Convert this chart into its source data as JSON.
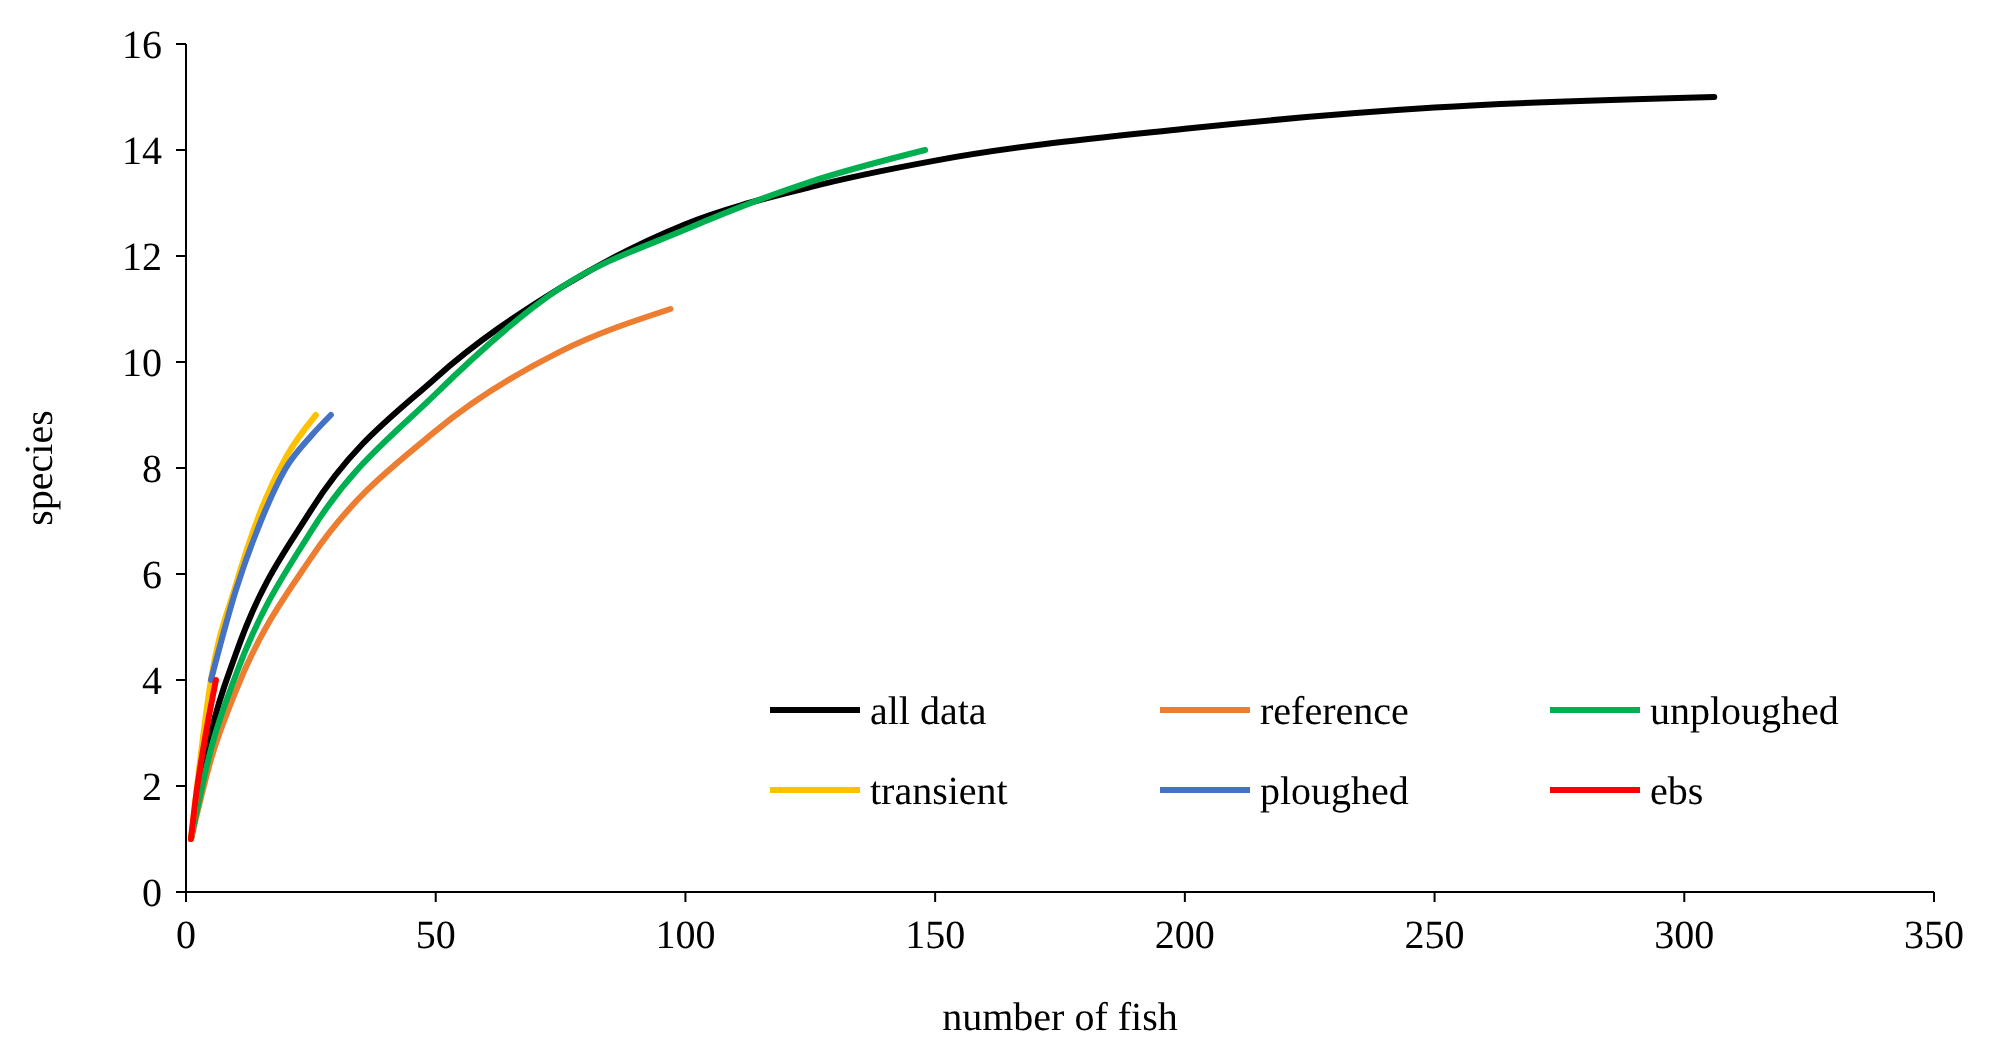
{
  "chart_data": {
    "type": "line",
    "xlabel": "number of fish",
    "ylabel": "species",
    "xlim": [
      0,
      350
    ],
    "ylim": [
      0,
      16
    ],
    "xticks": [
      0,
      50,
      100,
      150,
      200,
      250,
      300,
      350
    ],
    "yticks": [
      0,
      2,
      4,
      6,
      8,
      10,
      12,
      14,
      16
    ],
    "legend": "bottom right",
    "marker": "none",
    "line_style": "solid",
    "series": [
      {
        "name": "all data",
        "color": "#000000",
        "x": [
          1,
          5,
          10,
          25,
          50,
          75,
          100,
          125,
          150,
          200,
          250,
          306
        ],
        "values": [
          1,
          3,
          4.5,
          7.2,
          9.7,
          11.4,
          12.6,
          13.3,
          13.8,
          14.4,
          14.8,
          15
        ]
      },
      {
        "name": "reference",
        "color": "#ed7d31",
        "x": [
          1,
          5,
          10,
          25,
          50,
          75,
          97
        ],
        "values": [
          1,
          2.5,
          3.8,
          6.3,
          8.7,
          10.2,
          11
        ]
      },
      {
        "name": "unploughed",
        "color": "#00b050",
        "x": [
          1,
          5,
          10,
          25,
          50,
          75,
          100,
          125,
          148
        ],
        "values": [
          1,
          2.7,
          4.1,
          6.8,
          9.4,
          11.4,
          12.5,
          13.4,
          14
        ]
      },
      {
        "name": "transient",
        "color": "#ffc000",
        "x": [
          1,
          5,
          10,
          15,
          20,
          26
        ],
        "values": [
          1,
          4,
          5.8,
          7.2,
          8.2,
          9
        ]
      },
      {
        "name": "ploughed",
        "color": "#4472c4",
        "x": [
          5,
          10,
          15,
          20,
          25,
          29
        ],
        "values": [
          4,
          5.7,
          7,
          8,
          8.6,
          9
        ]
      },
      {
        "name": "ebs",
        "color": "#ff0000",
        "x": [
          1,
          2,
          4,
          6
        ],
        "values": [
          1,
          1.8,
          3,
          4
        ]
      }
    ]
  }
}
